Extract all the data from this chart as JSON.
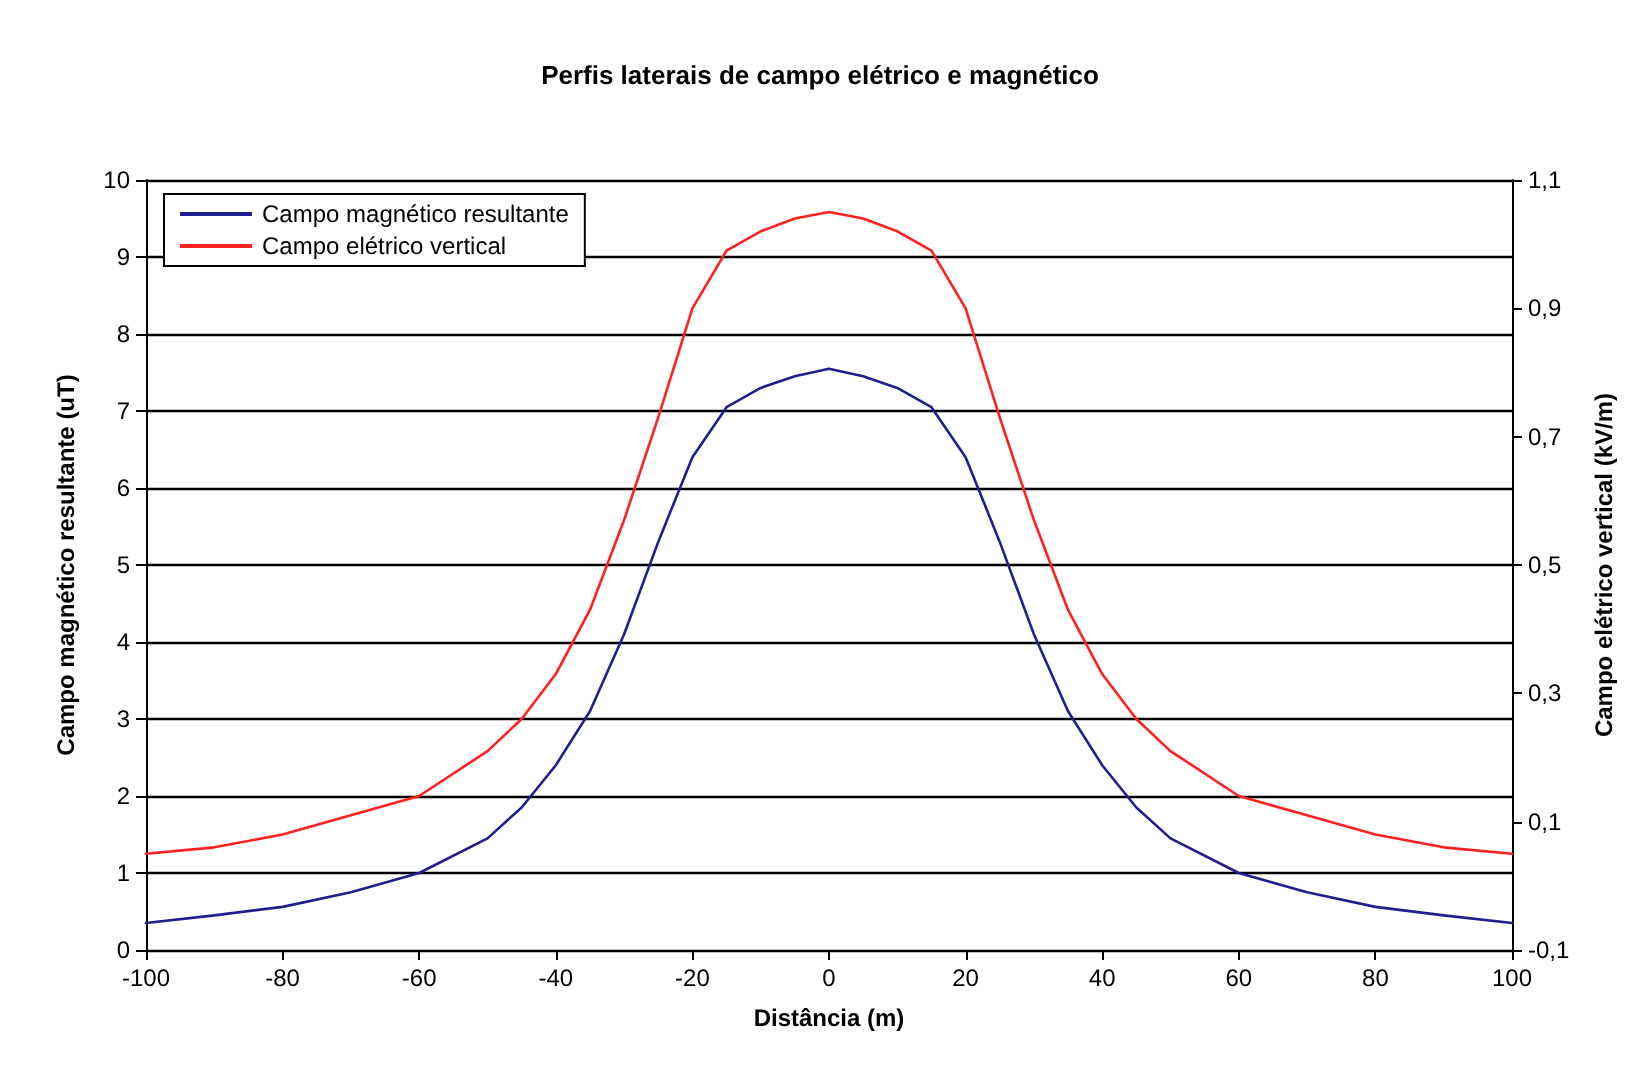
{
  "chart_data": {
    "type": "line",
    "title": "Perfis laterais de campo elétrico e magnético",
    "xlabel": "Distância (m)",
    "ylabel": "Campo magnético resultante (uT)",
    "y2label": "Campo elétrico vertical (kV/m)",
    "x": [
      -100,
      -90,
      -80,
      -70,
      -60,
      -50,
      -45,
      -40,
      -35,
      -30,
      -25,
      -20,
      -15,
      -10,
      -5,
      0,
      5,
      10,
      15,
      20,
      25,
      30,
      35,
      40,
      45,
      50,
      60,
      70,
      80,
      90,
      100
    ],
    "series": [
      {
        "name": "Campo magnético resultante",
        "color": "#1f1f8f",
        "values": [
          0.35,
          0.45,
          0.56,
          0.75,
          1.0,
          1.45,
          1.85,
          2.4,
          3.1,
          4.1,
          5.3,
          6.4,
          7.05,
          7.3,
          7.45,
          7.55,
          7.45,
          7.3,
          7.05,
          6.4,
          5.3,
          4.1,
          3.1,
          2.4,
          1.85,
          1.45,
          1.0,
          0.75,
          0.56,
          0.45,
          0.35
        ]
      },
      {
        "name": "Campo elétrico vertical",
        "color": "#ff2020",
        "axis": "y2",
        "values": [
          0.05,
          0.06,
          0.08,
          0.11,
          0.14,
          0.21,
          0.26,
          0.33,
          0.43,
          0.57,
          0.73,
          0.9,
          0.99,
          1.02,
          1.04,
          1.05,
          1.04,
          1.02,
          0.99,
          0.9,
          0.73,
          0.57,
          0.43,
          0.33,
          0.26,
          0.21,
          0.14,
          0.11,
          0.08,
          0.06,
          0.05
        ]
      }
    ],
    "xlim": [
      -100,
      100
    ],
    "xticks": [
      -100,
      -80,
      -60,
      -40,
      -20,
      0,
      20,
      40,
      60,
      80,
      100
    ],
    "ylim": [
      0,
      10
    ],
    "yticks": [
      0,
      1,
      2,
      3,
      4,
      5,
      6,
      7,
      8,
      9,
      10
    ],
    "y2lim": [
      -0.1,
      1.1
    ],
    "y2ticks": [
      {
        "value": -0.1,
        "label": "-0,1"
      },
      {
        "value": 0.1,
        "label": "0,1"
      },
      {
        "value": 0.3,
        "label": "0,3"
      },
      {
        "value": 0.5,
        "label": "0,5"
      },
      {
        "value": 0.7,
        "label": "0,7"
      },
      {
        "value": 0.9,
        "label": "0,9"
      },
      {
        "value": 1.1,
        "label": "1,1"
      }
    ],
    "grid": "y",
    "legend": "top left",
    "marker": "none",
    "line_style": "solid"
  }
}
